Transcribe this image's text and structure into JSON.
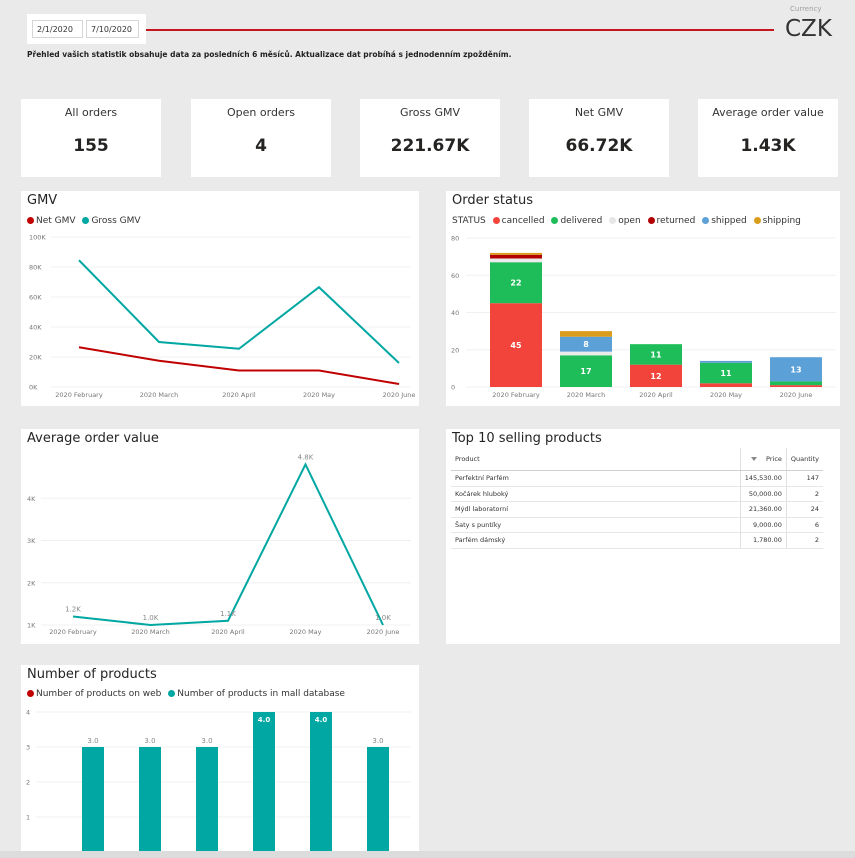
{
  "filters": {
    "date_from": "2/1/2020",
    "date_to": "7/10/2020"
  },
  "currency": {
    "label": "Currency",
    "value": "CZK"
  },
  "subtitle": "Přehled vašich statistik obsahuje data za posledních 6 měsíců. Aktualizace dat probíhá s jednodenním zpožděním.",
  "kpis": [
    {
      "title": "All orders",
      "value": "155"
    },
    {
      "title": "Open orders",
      "value": "4"
    },
    {
      "title": "Gross GMV",
      "value": "221.67K"
    },
    {
      "title": "Net GMV",
      "value": "66.72K"
    },
    {
      "title": "Average order value",
      "value": "1.43K"
    }
  ],
  "colors": {
    "accent": "#c4161c",
    "teal": "#01a7a2",
    "net": "#c00000",
    "cancelled": "#f2443a",
    "delivered": "#1fbd5a",
    "open": "#ebebeb",
    "returned": "#b30000",
    "shipped": "#5ba0d6",
    "shipping": "#d99c1c"
  },
  "gmv": {
    "title": "GMV",
    "legend": [
      {
        "label": "Net GMV",
        "color": "#c00000"
      },
      {
        "label": "Gross GMV",
        "color": "#01a7a2"
      }
    ]
  },
  "order_status": {
    "title": "Order status",
    "legend_title": "STATUS",
    "legend": [
      {
        "label": "cancelled",
        "color": "#f2443a"
      },
      {
        "label": "delivered",
        "color": "#1fbd5a"
      },
      {
        "label": "open",
        "color": "#ebebeb"
      },
      {
        "label": "returned",
        "color": "#b30000"
      },
      {
        "label": "shipped",
        "color": "#5ba0d6"
      },
      {
        "label": "shipping",
        "color": "#d99c1c"
      }
    ]
  },
  "aov": {
    "title": "Average order value"
  },
  "top_products": {
    "title": "Top 10 selling products",
    "columns": [
      "Product",
      "Price",
      "Quantity"
    ],
    "rows": [
      {
        "product": "Perfektní Parfém",
        "price": "145,530.00",
        "quantity": "147"
      },
      {
        "product": "Kočárek hluboký",
        "price": "50,000.00",
        "quantity": "2"
      },
      {
        "product": "Mýdl laboratorní",
        "price": "21,360.00",
        "quantity": "24"
      },
      {
        "product": "Šaty s puntíky",
        "price": "9,000.00",
        "quantity": "6"
      },
      {
        "product": "Parfém dámský",
        "price": "1,780.00",
        "quantity": "2"
      }
    ]
  },
  "products": {
    "title": "Number of products",
    "legend": [
      {
        "label": "Number of products on web",
        "color": "#c00000"
      },
      {
        "label": "Number of products in mall database",
        "color": "#01a7a2"
      }
    ]
  },
  "chart_data": [
    {
      "id": "gmv",
      "type": "line",
      "title": "GMV",
      "categories": [
        "2020 February",
        "2020 March",
        "2020 April",
        "2020 May",
        "2020 June"
      ],
      "series": [
        {
          "name": "Net GMV",
          "values": [
            26500,
            17500,
            11000,
            11000,
            2000
          ]
        },
        {
          "name": "Gross GMV",
          "values": [
            84500,
            30000,
            25500,
            66500,
            16000
          ]
        }
      ],
      "ylim": [
        0,
        100000
      ],
      "yticks": [
        0,
        20000,
        40000,
        60000,
        80000,
        100000
      ],
      "ytick_labels": [
        "0K",
        "20K",
        "40K",
        "60K",
        "80K",
        "100K"
      ]
    },
    {
      "id": "order_status",
      "type": "bar",
      "stacked": true,
      "title": "Order status",
      "categories": [
        "2020 February",
        "2020 March",
        "2020 April",
        "2020 May",
        "2020 June"
      ],
      "series": [
        {
          "name": "cancelled",
          "values": [
            45,
            0,
            12,
            2,
            1
          ]
        },
        {
          "name": "delivered",
          "values": [
            22,
            17,
            11,
            11,
            2
          ]
        },
        {
          "name": "open",
          "values": [
            2,
            2,
            0,
            0,
            0
          ]
        },
        {
          "name": "returned",
          "values": [
            2,
            0,
            0,
            0,
            0
          ]
        },
        {
          "name": "shipped",
          "values": [
            0,
            8,
            0,
            1,
            13
          ]
        },
        {
          "name": "shipping",
          "values": [
            1,
            3,
            0,
            0,
            0
          ]
        }
      ],
      "data_labels": [
        {
          "category": "2020 February",
          "series": "cancelled",
          "label": "45"
        },
        {
          "category": "2020 February",
          "series": "delivered",
          "label": "22"
        },
        {
          "category": "2020 March",
          "series": "delivered",
          "label": "17"
        },
        {
          "category": "2020 March",
          "series": "shipped",
          "label": "8"
        },
        {
          "category": "2020 April",
          "series": "cancelled",
          "label": "12"
        },
        {
          "category": "2020 April",
          "series": "delivered",
          "label": "11"
        },
        {
          "category": "2020 May",
          "series": "delivered",
          "label": "11"
        },
        {
          "category": "2020 June",
          "series": "shipped",
          "label": "13"
        }
      ],
      "ylim": [
        0,
        80
      ],
      "yticks": [
        0,
        20,
        40,
        60,
        80
      ]
    },
    {
      "id": "aov",
      "type": "line",
      "title": "Average order value",
      "categories": [
        "2020 February",
        "2020 March",
        "2020 April",
        "2020 May",
        "2020 June"
      ],
      "values": [
        1200,
        1000,
        1100,
        4800,
        1000
      ],
      "point_labels": [
        "1.2K",
        "1.0K",
        "1.1K",
        "4.8K",
        "1.0K"
      ],
      "ylim": [
        1000,
        5000
      ],
      "yticks": [
        1000,
        2000,
        3000,
        4000
      ],
      "ytick_labels": [
        "1K",
        "2K",
        "3K",
        "4K"
      ]
    },
    {
      "id": "products",
      "type": "bar",
      "title": "Number of products",
      "categories": [
        "",
        "",
        "",
        "",
        "",
        ""
      ],
      "series": [
        {
          "name": "Number of products on web",
          "values": [
            0,
            0,
            0,
            0,
            0,
            0
          ]
        },
        {
          "name": "Number of products in mall database",
          "values": [
            3,
            3,
            3,
            4,
            4,
            3
          ]
        }
      ],
      "labels": [
        "3.0",
        "3.0",
        "3.0",
        "4.0",
        "4.0",
        "3.0"
      ],
      "ylim": [
        0,
        4
      ],
      "yticks": [
        1,
        2,
        3,
        4
      ]
    }
  ]
}
